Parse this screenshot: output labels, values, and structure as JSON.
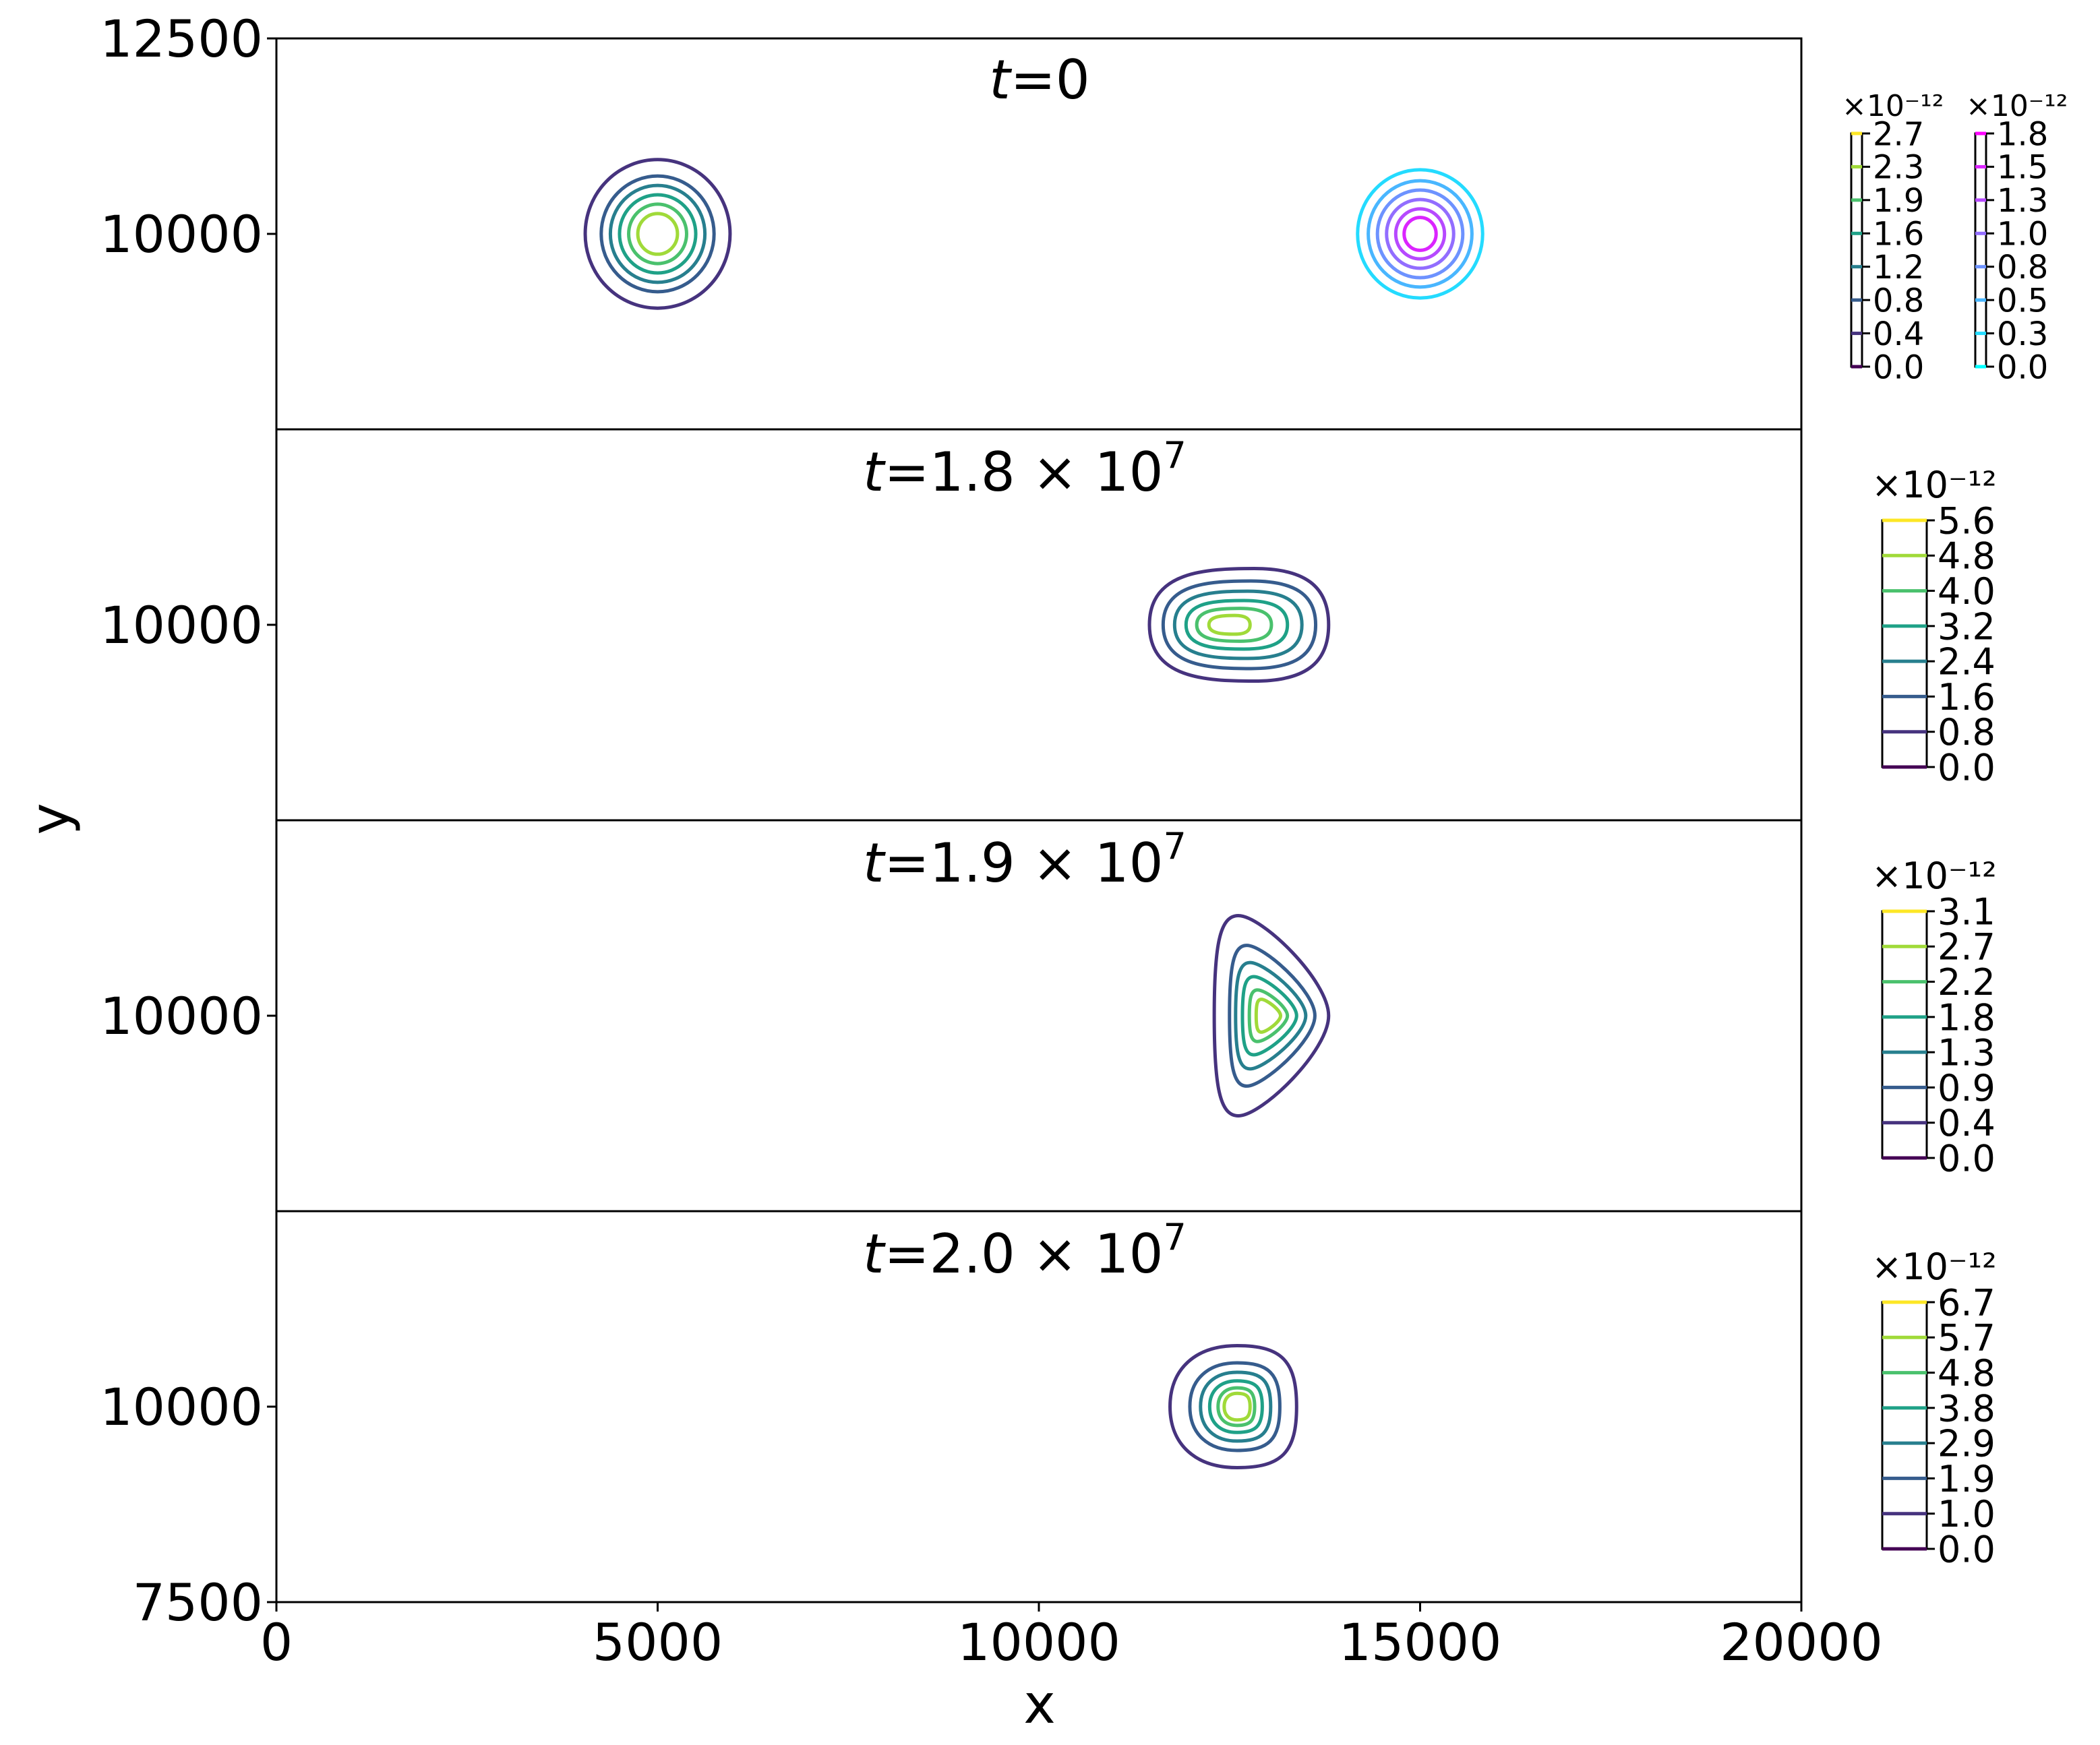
{
  "chart_data": {
    "type": "contour",
    "xlabel": "x",
    "ylabel": "y",
    "xlim": [
      0,
      20000
    ],
    "x_ticks": [
      "0",
      "5000",
      "10000",
      "15000",
      "20000"
    ],
    "y_ticks_top": [
      "12500",
      "10000"
    ],
    "y_ticks_bottom": [
      "10000",
      "7500"
    ],
    "y_ticks_middle": [
      "10000",
      "10000"
    ],
    "panels": [
      {
        "title_var": "t",
        "title_value": "=0",
        "title_exp": "",
        "ylim": [
          7500,
          12500
        ],
        "blobs": [
          {
            "center": [
              5000,
              10000
            ],
            "shape": "circle",
            "max": 2.7,
            "colorbar_exp": "×10⁻¹²",
            "colorbar_ticks": [
              "0.0",
              "0.4",
              "0.8",
              "1.2",
              "1.6",
              "1.9",
              "2.3",
              "2.7"
            ]
          },
          {
            "center": [
              15000,
              10000
            ],
            "shape": "circle",
            "max": 1.8,
            "colorbar_exp": "×10⁻¹²",
            "colorbar_ticks": [
              "0.0",
              "0.3",
              "0.5",
              "0.8",
              "1.0",
              "1.3",
              "1.5",
              "1.8"
            ]
          }
        ]
      },
      {
        "title_var": "t",
        "title_value": "=1.8 × 10",
        "title_exp": "7",
        "ylim": [
          7500,
          12500
        ],
        "colorbar_exp": "×10⁻¹²",
        "colorbar_ticks": [
          "0.0",
          "0.8",
          "1.6",
          "2.4",
          "3.2",
          "4.0",
          "4.8",
          "5.6"
        ],
        "center": [
          12500,
          10000
        ],
        "shape": "elongated"
      },
      {
        "title_var": "t",
        "title_value": "=1.9 × 10",
        "title_exp": "7",
        "ylim": [
          7500,
          12500
        ],
        "colorbar_exp": "×10⁻¹²",
        "colorbar_ticks": [
          "0.0",
          "0.4",
          "0.9",
          "1.3",
          "1.8",
          "2.2",
          "2.7",
          "3.1"
        ],
        "center": [
          13000,
          10000
        ],
        "shape": "triangular"
      },
      {
        "title_var": "t",
        "title_value": "=2.0 × 10",
        "title_exp": "7",
        "ylim": [
          7500,
          12500
        ],
        "colorbar_exp": "×10⁻¹²",
        "colorbar_ticks": [
          "0.0",
          "1.0",
          "1.9",
          "2.9",
          "3.8",
          "4.8",
          "5.7",
          "6.7"
        ],
        "center": [
          12600,
          10000
        ],
        "shape": "round"
      }
    ],
    "viridis_levels": [
      "#440154",
      "#46337e",
      "#365c8d",
      "#277f8e",
      "#1fa187",
      "#4ac16d",
      "#a0da39",
      "#fde725"
    ],
    "cool_levels": [
      "#00ffff",
      "#24dbff",
      "#49b6ff",
      "#6d92ff",
      "#926dff",
      "#b649ff",
      "#db24ff",
      "#ff00ff"
    ]
  }
}
